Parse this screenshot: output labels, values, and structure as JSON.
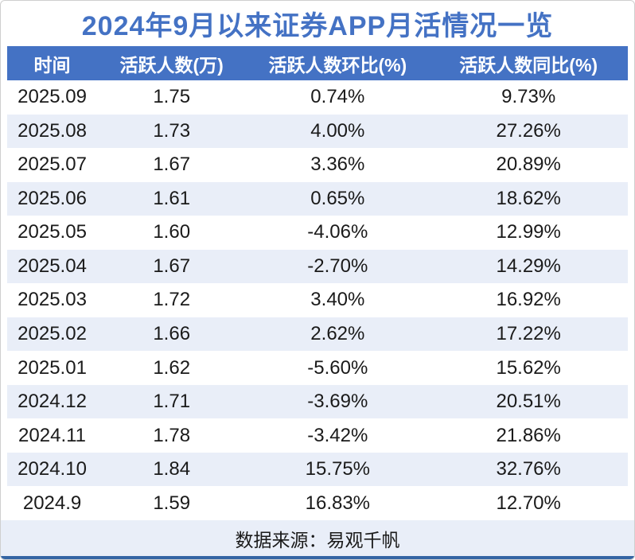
{
  "title": "2024年9月以来证券APP月活情况一览",
  "footer": {
    "source_label": "数据来源：易观千帆"
  },
  "colors": {
    "title_color": "#4472C4",
    "header_bg": "#4472C4",
    "alt_row_bg": "#E9EEF8",
    "bottom_line": "#3465A4",
    "card_bg": "#ffffff"
  },
  "chart_data": {
    "type": "table",
    "title": "2024年9月以来证券APP月活情况一览",
    "columns": [
      "时间",
      "活跃人数(万)",
      "活跃人数环比(%)",
      "活跃人数同比(%)"
    ],
    "rows": [
      [
        "2025.09",
        "1.75",
        "0.74%",
        "9.73%"
      ],
      [
        "2025.08",
        "1.73",
        "4.00%",
        "27.26%"
      ],
      [
        "2025.07",
        "1.67",
        "3.36%",
        "20.89%"
      ],
      [
        "2025.06",
        "1.61",
        "0.65%",
        "18.62%"
      ],
      [
        "2025.05",
        "1.60",
        "-4.06%",
        "12.99%"
      ],
      [
        "2025.04",
        "1.67",
        "-2.70%",
        "14.29%"
      ],
      [
        "2025.03",
        "1.72",
        "3.40%",
        "16.92%"
      ],
      [
        "2025.02",
        "1.66",
        "2.62%",
        "17.22%"
      ],
      [
        "2025.01",
        "1.62",
        "-5.60%",
        "15.62%"
      ],
      [
        "2024.12",
        "1.71",
        "-3.69%",
        "20.51%"
      ],
      [
        "2024.11",
        "1.78",
        "-3.42%",
        "21.86%"
      ],
      [
        "2024.10",
        "1.84",
        "15.75%",
        "32.76%"
      ],
      [
        "2024.9",
        "1.59",
        "16.83%",
        "12.70%"
      ]
    ],
    "footer": "数据来源：易观千帆",
    "layout": {
      "striped": true,
      "first_row_background": "white",
      "alignment": "center"
    }
  }
}
